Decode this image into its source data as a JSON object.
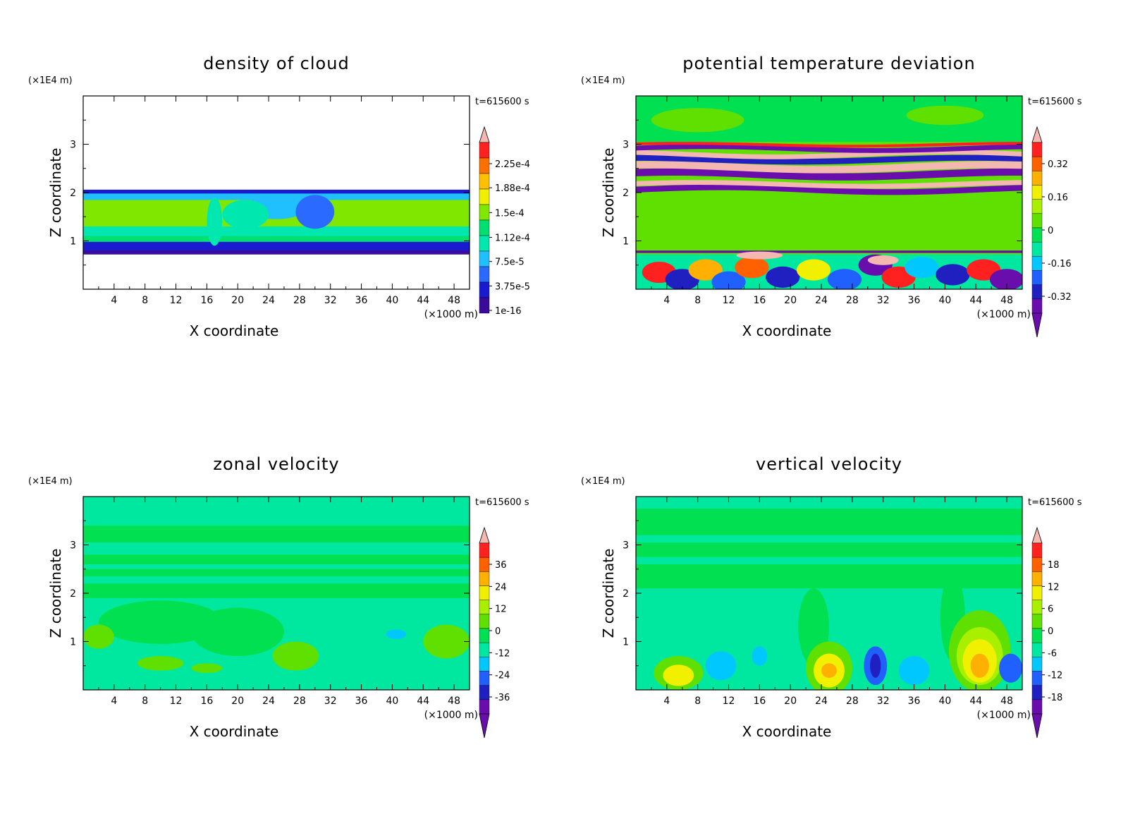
{
  "chart_data": [
    {
      "type": "heatmap",
      "title": "density of cloud",
      "xlabel": "X coordinate",
      "ylabel": "Z coordinate",
      "x_unit": "(×1000 m)",
      "y_unit": "(×1E4 m)",
      "time_label": "t=615600 s",
      "xlim": [
        0,
        50
      ],
      "ylim": [
        0,
        4
      ],
      "xticks": [
        4,
        8,
        12,
        16,
        20,
        24,
        28,
        32,
        36,
        40,
        44,
        48
      ],
      "yticks": [
        1,
        2,
        3
      ],
      "colorbar_labels": [
        "2.25e-4",
        "1.88e-4",
        "1.5e-4",
        "1.12e-4",
        "7.5e-5",
        "3.75e-5",
        "1e-16"
      ],
      "colorbar_label_values": [
        0.000225,
        0.000188,
        0.00015,
        0.000112,
        7.5e-05,
        3.75e-05,
        1e-16
      ],
      "grid": false
    },
    {
      "type": "heatmap",
      "title": "potential temperature deviation",
      "xlabel": "X coordinate",
      "ylabel": "Z coordinate",
      "x_unit": "(×1000 m)",
      "y_unit": "(×1E4 m)",
      "time_label": "t=615600 s",
      "xlim": [
        0,
        50
      ],
      "ylim": [
        0,
        4
      ],
      "xticks": [
        4,
        8,
        12,
        16,
        20,
        24,
        28,
        32,
        36,
        40,
        44,
        48
      ],
      "yticks": [
        1,
        2,
        3
      ],
      "colorbar_labels": [
        "0.32",
        "0.16",
        "0",
        "-0.16",
        "-0.32"
      ],
      "colorbar_label_values": [
        0.32,
        0.16,
        0,
        -0.16,
        -0.32
      ],
      "grid": false
    },
    {
      "type": "heatmap",
      "title": "zonal velocity",
      "xlabel": "X coordinate",
      "ylabel": "Z coordinate",
      "x_unit": "(×1000 m)",
      "y_unit": "(×1E4 m)",
      "time_label": "t=615600 s",
      "xlim": [
        0,
        50
      ],
      "ylim": [
        0,
        4
      ],
      "xticks": [
        4,
        8,
        12,
        16,
        20,
        24,
        28,
        32,
        36,
        40,
        44,
        48
      ],
      "yticks": [
        1,
        2,
        3
      ],
      "colorbar_labels": [
        "36",
        "24",
        "12",
        "0",
        "-12",
        "-24",
        "-36"
      ],
      "colorbar_label_values": [
        36,
        24,
        12,
        0,
        -12,
        -24,
        -36
      ],
      "grid": false
    },
    {
      "type": "heatmap",
      "title": "vertical velocity",
      "xlabel": "X coordinate",
      "ylabel": "Z coordinate",
      "x_unit": "(×1000 m)",
      "y_unit": "(×1E4 m)",
      "time_label": "t=615600 s",
      "xlim": [
        0,
        50
      ],
      "ylim": [
        0,
        4
      ],
      "xticks": [
        4,
        8,
        12,
        16,
        20,
        24,
        28,
        32,
        36,
        40,
        44,
        48
      ],
      "yticks": [
        1,
        2,
        3
      ],
      "colorbar_labels": [
        "18",
        "12",
        "6",
        "0",
        "-6",
        "-12",
        "-18"
      ],
      "colorbar_label_values": [
        18,
        12,
        6,
        0,
        -6,
        -12,
        -18
      ],
      "grid": false
    }
  ],
  "colors": {
    "colormap": [
      "#6a0dad",
      "#2020c0",
      "#2060ff",
      "#00c8ff",
      "#00e8a0",
      "#00e050",
      "#60e000",
      "#a8f000",
      "#f0f000",
      "#ffb000",
      "#ff6000",
      "#ff2020",
      "#f4b8b0"
    ],
    "cloud_colormap": [
      "#3a0a9a",
      "#1a1ad0",
      "#2a6aff",
      "#20c0ff",
      "#00e8b0",
      "#00e070",
      "#80e800",
      "#f0f000",
      "#ffc000",
      "#ff7000",
      "#ff2020",
      "#f4b8b0"
    ]
  }
}
